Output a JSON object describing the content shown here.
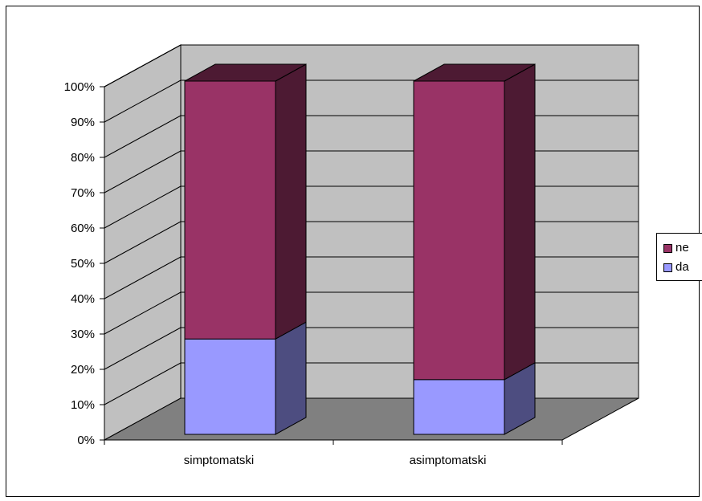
{
  "chart_data": {
    "type": "bar",
    "subtype": "3d-stacked-percent",
    "categories": [
      "simptomatski",
      "asimptomatski"
    ],
    "series": [
      {
        "name": "da",
        "values": [
          27,
          15.5
        ],
        "color": "#9999ff",
        "side_color": "#4d4d80"
      },
      {
        "name": "ne",
        "values": [
          73,
          84.5
        ],
        "color": "#993366",
        "side_color": "#4d1a33"
      }
    ],
    "y_ticks": [
      "0%",
      "10%",
      "20%",
      "30%",
      "40%",
      "50%",
      "60%",
      "70%",
      "80%",
      "90%",
      "100%"
    ],
    "ylim": [
      0,
      100
    ],
    "grid": true,
    "legend_position": "right",
    "legend_order": [
      "ne",
      "da"
    ],
    "wall_color": "#c0c0c0",
    "floor_color": "#808080"
  }
}
